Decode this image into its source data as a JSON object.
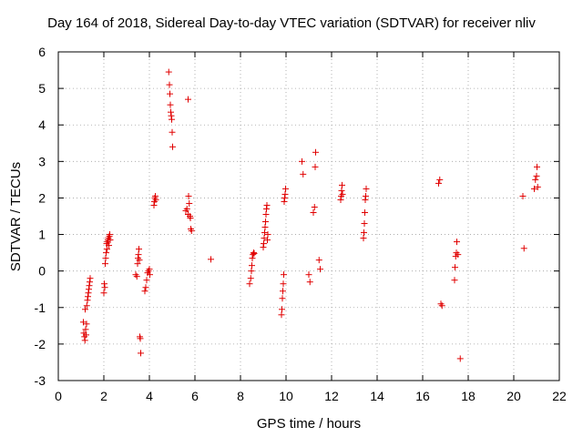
{
  "chart_data": {
    "type": "scatter",
    "title": "Day 164 of 2018, Sidereal Day-to-day VTEC variation (SDTVAR) for receiver nliv",
    "xlabel": "GPS time / hours",
    "ylabel": "SDTVAR / TECUs",
    "xlim": [
      0,
      22
    ],
    "ylim": [
      -3,
      6
    ],
    "xticks": [
      "0",
      "2",
      "4",
      "6",
      "8",
      "10",
      "12",
      "14",
      "16",
      "18",
      "20",
      "22"
    ],
    "yticks": [
      "-3",
      "-2",
      "-1",
      "0",
      "1",
      "2",
      "3",
      "4",
      "5",
      "6"
    ],
    "grid": true,
    "marker": "+",
    "color": "#e00000",
    "series": [
      {
        "name": "SDTVAR",
        "points": [
          [
            1.1,
            -1.4
          ],
          [
            1.12,
            -1.7
          ],
          [
            1.15,
            -1.8
          ],
          [
            1.17,
            -1.9
          ],
          [
            1.18,
            -1.05
          ],
          [
            1.2,
            -1.6
          ],
          [
            1.22,
            -1.75
          ],
          [
            1.24,
            -1.45
          ],
          [
            1.25,
            -0.95
          ],
          [
            1.28,
            -0.8
          ],
          [
            1.3,
            -0.7
          ],
          [
            1.32,
            -0.6
          ],
          [
            1.34,
            -0.5
          ],
          [
            1.36,
            -0.4
          ],
          [
            1.38,
            -0.3
          ],
          [
            1.4,
            -0.2
          ],
          [
            2.0,
            -0.6
          ],
          [
            2.02,
            -0.35
          ],
          [
            2.04,
            -0.45
          ],
          [
            2.06,
            0.2
          ],
          [
            2.08,
            0.35
          ],
          [
            2.1,
            0.5
          ],
          [
            2.12,
            0.75
          ],
          [
            2.14,
            0.6
          ],
          [
            2.16,
            0.8
          ],
          [
            2.18,
            0.85
          ],
          [
            2.2,
            0.9
          ],
          [
            2.22,
            0.7
          ],
          [
            2.24,
            0.95
          ],
          [
            2.26,
            1.0
          ],
          [
            2.28,
            0.85
          ],
          [
            3.4,
            -0.1
          ],
          [
            3.45,
            -0.15
          ],
          [
            3.48,
            0.2
          ],
          [
            3.5,
            0.35
          ],
          [
            3.52,
            0.45
          ],
          [
            3.54,
            0.6
          ],
          [
            3.56,
            0.3
          ],
          [
            3.58,
            -1.8
          ],
          [
            3.6,
            -1.85
          ],
          [
            3.62,
            -2.25
          ],
          [
            3.8,
            -0.55
          ],
          [
            3.84,
            -0.45
          ],
          [
            3.88,
            -0.25
          ],
          [
            3.92,
            -0.05
          ],
          [
            3.96,
            0.0
          ],
          [
            4.0,
            0.05
          ],
          [
            4.02,
            -0.1
          ],
          [
            4.2,
            1.8
          ],
          [
            4.22,
            1.9
          ],
          [
            4.24,
            2.0
          ],
          [
            4.26,
            2.05
          ],
          [
            4.28,
            1.95
          ],
          [
            4.85,
            5.45
          ],
          [
            4.88,
            5.1
          ],
          [
            4.9,
            4.85
          ],
          [
            4.92,
            4.55
          ],
          [
            4.94,
            4.35
          ],
          [
            4.96,
            4.25
          ],
          [
            4.98,
            4.15
          ],
          [
            5.0,
            3.8
          ],
          [
            5.02,
            3.4
          ],
          [
            5.7,
            4.7
          ],
          [
            5.6,
            1.65
          ],
          [
            5.65,
            1.7
          ],
          [
            5.7,
            1.55
          ],
          [
            5.72,
            2.05
          ],
          [
            5.75,
            1.85
          ],
          [
            5.78,
            1.5
          ],
          [
            5.8,
            1.45
          ],
          [
            5.82,
            1.15
          ],
          [
            5.85,
            1.1
          ],
          [
            6.7,
            0.32
          ],
          [
            8.4,
            -0.35
          ],
          [
            8.45,
            -0.2
          ],
          [
            8.48,
            0.0
          ],
          [
            8.5,
            0.15
          ],
          [
            8.52,
            0.35
          ],
          [
            8.55,
            0.45
          ],
          [
            8.58,
            0.5
          ],
          [
            8.6,
            0.48
          ],
          [
            9.0,
            0.65
          ],
          [
            9.02,
            0.75
          ],
          [
            9.04,
            0.9
          ],
          [
            9.06,
            1.05
          ],
          [
            9.08,
            1.2
          ],
          [
            9.1,
            1.35
          ],
          [
            9.12,
            1.55
          ],
          [
            9.14,
            1.7
          ],
          [
            9.16,
            1.8
          ],
          [
            9.18,
            0.85
          ],
          [
            9.2,
            1.0
          ],
          [
            9.8,
            -1.2
          ],
          [
            9.82,
            -1.05
          ],
          [
            9.84,
            -0.75
          ],
          [
            9.86,
            -0.55
          ],
          [
            9.88,
            -0.35
          ],
          [
            9.9,
            -0.1
          ],
          [
            9.92,
            1.9
          ],
          [
            9.94,
            2.0
          ],
          [
            9.96,
            2.1
          ],
          [
            9.98,
            2.25
          ],
          [
            10.7,
            3.0
          ],
          [
            10.75,
            2.65
          ],
          [
            11.0,
            -0.1
          ],
          [
            11.05,
            -0.3
          ],
          [
            11.2,
            1.6
          ],
          [
            11.25,
            1.75
          ],
          [
            11.28,
            2.85
          ],
          [
            11.3,
            3.25
          ],
          [
            11.45,
            0.3
          ],
          [
            11.5,
            0.05
          ],
          [
            12.4,
            1.95
          ],
          [
            12.42,
            2.05
          ],
          [
            12.44,
            2.2
          ],
          [
            12.46,
            2.35
          ],
          [
            12.48,
            2.1
          ],
          [
            13.4,
            0.9
          ],
          [
            13.42,
            1.05
          ],
          [
            13.44,
            1.3
          ],
          [
            13.46,
            1.6
          ],
          [
            13.48,
            1.95
          ],
          [
            13.5,
            2.05
          ],
          [
            13.52,
            2.25
          ],
          [
            16.7,
            2.4
          ],
          [
            16.75,
            2.5
          ],
          [
            16.8,
            -0.9
          ],
          [
            16.85,
            -0.95
          ],
          [
            17.4,
            -0.25
          ],
          [
            17.42,
            0.1
          ],
          [
            17.45,
            0.4
          ],
          [
            17.48,
            0.5
          ],
          [
            17.5,
            0.8
          ],
          [
            17.55,
            0.45
          ],
          [
            17.65,
            -2.4
          ],
          [
            20.4,
            2.05
          ],
          [
            20.45,
            0.62
          ],
          [
            20.9,
            2.25
          ],
          [
            20.95,
            2.5
          ],
          [
            21.0,
            2.6
          ],
          [
            21.02,
            2.85
          ],
          [
            21.05,
            2.3
          ]
        ]
      }
    ]
  }
}
